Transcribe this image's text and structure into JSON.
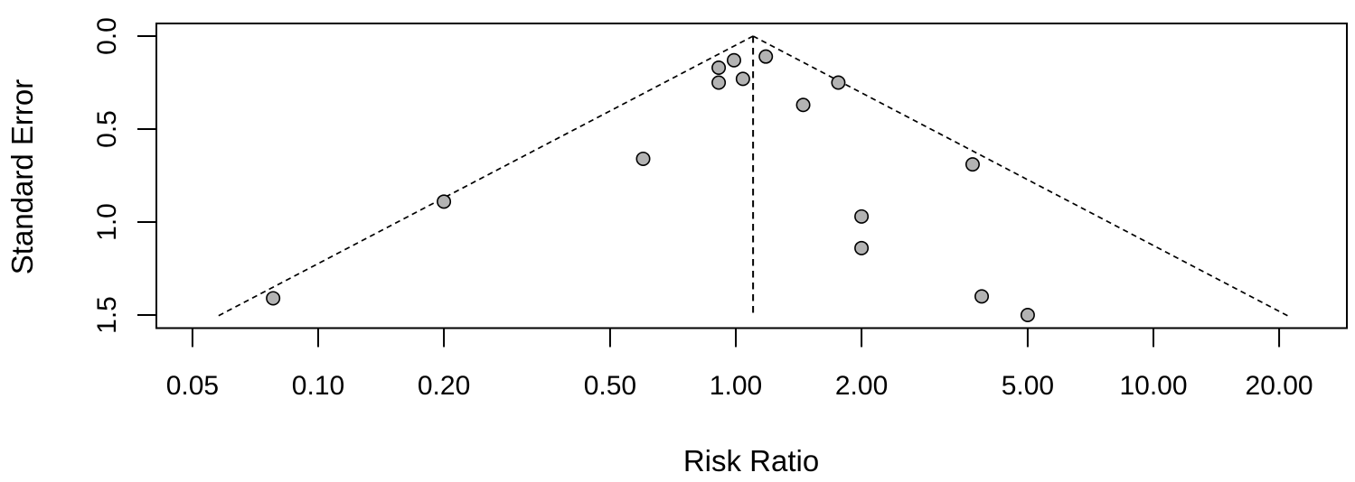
{
  "chart_data": {
    "type": "scatter",
    "subtype": "funnel-plot",
    "title": "",
    "xlabel": "Risk Ratio",
    "ylabel": "Standard Error",
    "x_scale": "log",
    "y_axis_reversed": true,
    "xlim": [
      0.041,
      29.0
    ],
    "ylim": [
      0.0,
      1.57
    ],
    "grid": false,
    "legend": "none",
    "x_ticks": [
      {
        "value": 0.05,
        "label": "0.05"
      },
      {
        "value": 0.1,
        "label": "0.10"
      },
      {
        "value": 0.2,
        "label": "0.20"
      },
      {
        "value": 0.5,
        "label": "0.50"
      },
      {
        "value": 1.0,
        "label": "1.00"
      },
      {
        "value": 2.0,
        "label": "2.00"
      },
      {
        "value": 5.0,
        "label": "5.00"
      },
      {
        "value": 10.0,
        "label": "10.00"
      },
      {
        "value": 20.0,
        "label": "20.00"
      }
    ],
    "y_ticks": [
      {
        "value": 0.0,
        "label": "0.0"
      },
      {
        "value": 0.5,
        "label": "0.5"
      },
      {
        "value": 1.0,
        "label": "1.0"
      },
      {
        "value": 1.5,
        "label": "1.5"
      }
    ],
    "points": [
      {
        "rr": 0.91,
        "se": 0.17
      },
      {
        "rr": 0.99,
        "se": 0.13
      },
      {
        "rr": 0.91,
        "se": 0.25
      },
      {
        "rr": 1.04,
        "se": 0.23
      },
      {
        "rr": 1.18,
        "se": 0.11
      },
      {
        "rr": 1.76,
        "se": 0.25
      },
      {
        "rr": 1.45,
        "se": 0.37
      },
      {
        "rr": 0.6,
        "se": 0.66
      },
      {
        "rr": 3.69,
        "se": 0.69
      },
      {
        "rr": 0.2,
        "se": 0.89
      },
      {
        "rr": 2.0,
        "se": 0.97
      },
      {
        "rr": 2.0,
        "se": 1.14
      },
      {
        "rr": 0.078,
        "se": 1.41
      },
      {
        "rr": 3.88,
        "se": 1.4
      },
      {
        "rr": 5.0,
        "se": 1.5
      }
    ],
    "funnel": {
      "center_rr": 1.1,
      "z": 1.96,
      "se_top": 0.0,
      "se_bottom": 1.513,
      "style": "dashed",
      "center_line": "dashed-vertical"
    },
    "colors": {
      "point_fill": "#b3b3b3",
      "point_stroke": "#000000",
      "line": "#000000",
      "axis": "#000000",
      "background": "#ffffff"
    }
  }
}
